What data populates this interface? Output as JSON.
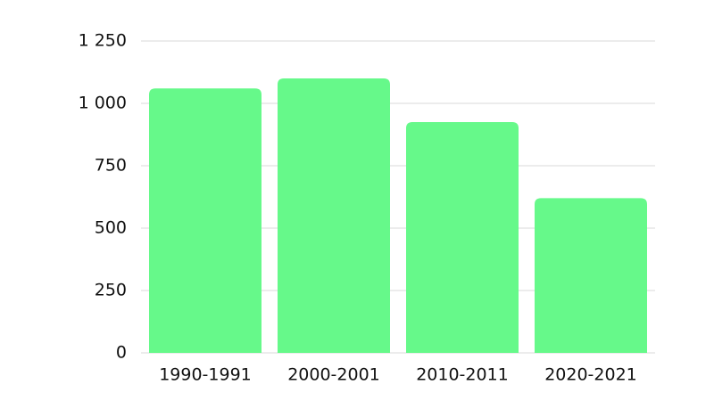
{
  "chart_data": {
    "type": "bar",
    "categories": [
      "1990-1991",
      "2000-2001",
      "2010-2011",
      "2020-2021"
    ],
    "values": [
      1060,
      1100,
      925,
      620
    ],
    "color": "#66f98a",
    "ylim": [
      0,
      1250
    ],
    "yticks": [
      0,
      250,
      500,
      750,
      {
        "value": 1000,
        "label": "1 000"
      },
      {
        "value": 1250,
        "label": "1 250"
      }
    ],
    "grid": true
  }
}
